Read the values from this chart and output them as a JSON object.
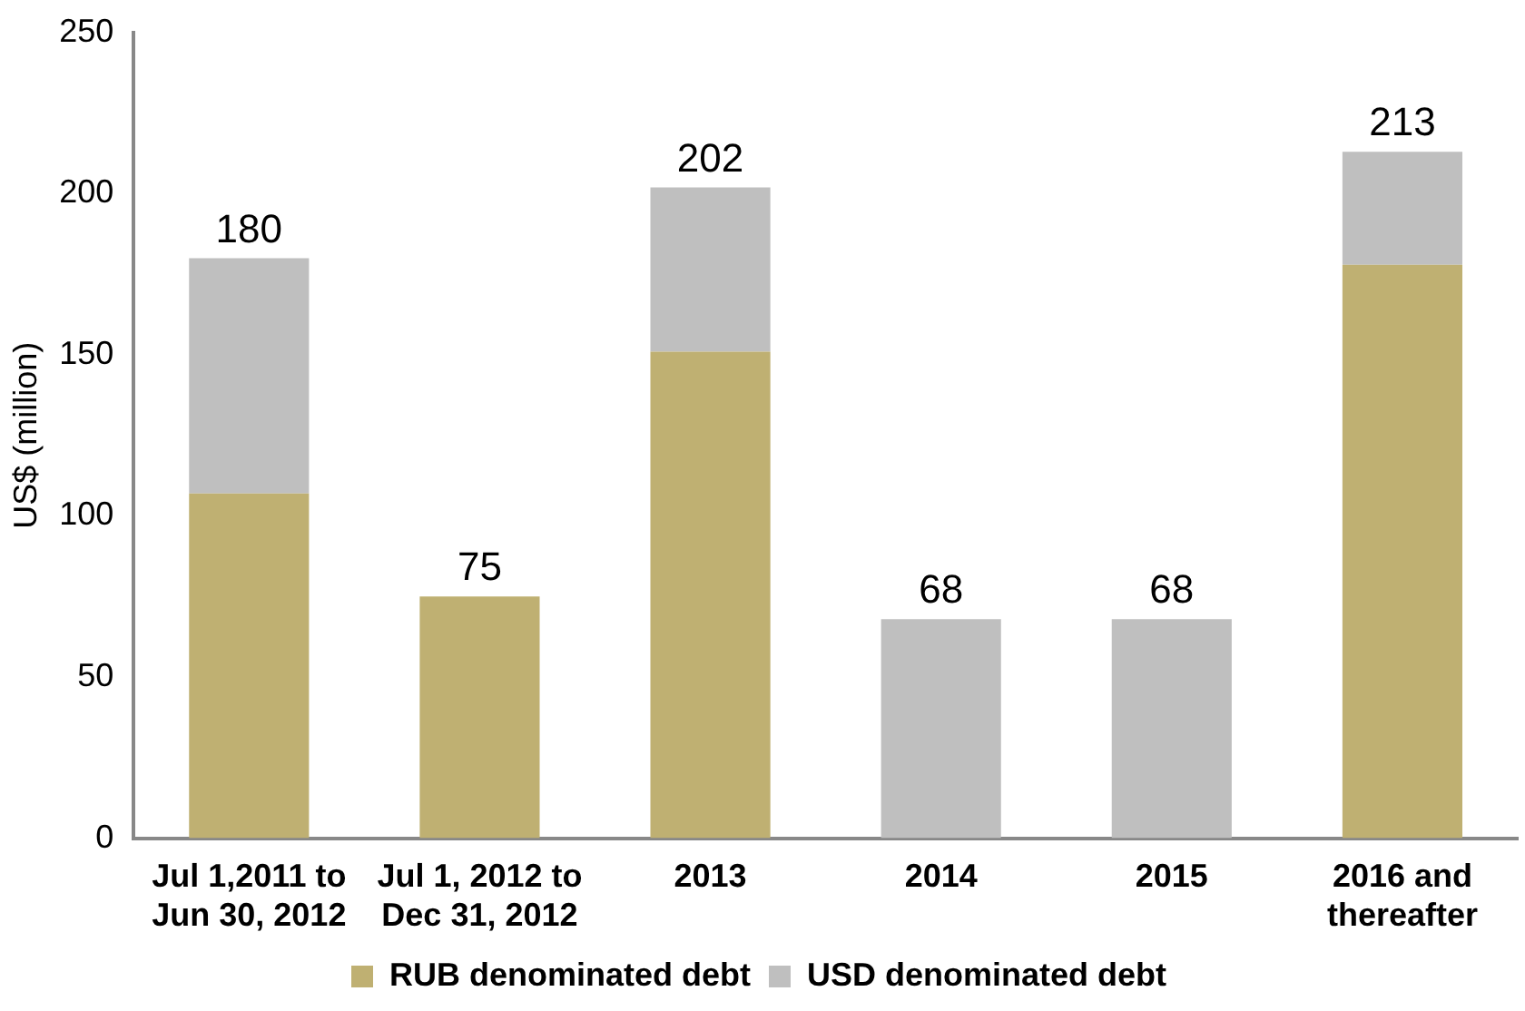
{
  "chart_data": {
    "type": "bar",
    "stacked": true,
    "ylabel": "US$ (million)",
    "categories": [
      "Jul 1,2011 to Jun 30, 2012",
      "Jul 1, 2012 to Dec 31, 2012",
      "2013",
      "2014",
      "2015",
      "2016 and thereafter"
    ],
    "series": [
      {
        "name": "RUB denominated debt",
        "color": "#bfb072",
        "values": [
          107,
          75,
          151,
          0,
          0,
          178
        ]
      },
      {
        "name": "USD denominated debt",
        "color": "#bfbfbf",
        "values": [
          73,
          0,
          51,
          68,
          68,
          35
        ]
      }
    ],
    "totals": [
      "180",
      "75",
      "202",
      "68",
      "68",
      "213"
    ],
    "ylim": [
      0,
      250
    ],
    "yticks": [
      0,
      50,
      100,
      150,
      200,
      250
    ],
    "grid": false,
    "legend": "bottom"
  }
}
